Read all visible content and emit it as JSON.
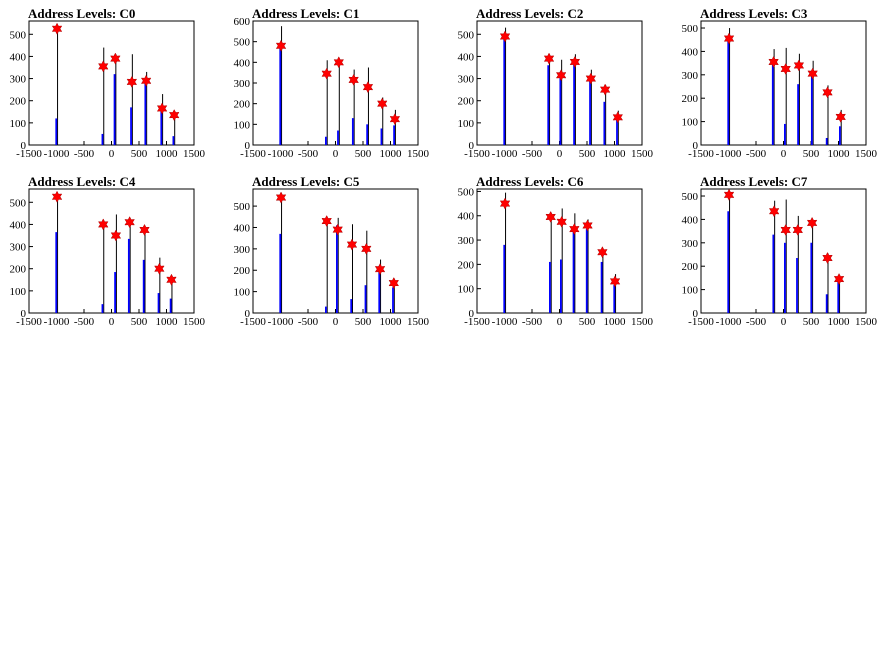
{
  "colors": {
    "background": "#ffffff",
    "frame": "#000000",
    "histogram_black": "#000000",
    "histogram_blue": "#0000ff",
    "marker": "#ff0000"
  },
  "chart_data": [
    {
      "type": "bar",
      "title": "Address Levels: C0",
      "xlim": [
        -1500,
        1500
      ],
      "ylim": [
        0,
        560
      ],
      "xticks": [
        "-1500",
        "-1000",
        "-500",
        "0",
        "500",
        "1000",
        "1500"
      ],
      "yticks": [
        "0",
        "100",
        "200",
        "300",
        "400",
        "500"
      ],
      "ytick_values": [
        0,
        100,
        200,
        300,
        400,
        500
      ],
      "peaks": [
        {
          "x": -990,
          "black": 525,
          "blue": 120,
          "marker": 525
        },
        {
          "x": -150,
          "black": 440,
          "blue": 50,
          "marker": 355
        },
        {
          "x": 70,
          "black": 410,
          "blue": 320,
          "marker": 390
        },
        {
          "x": 370,
          "black": 410,
          "blue": 170,
          "marker": 285
        },
        {
          "x": 630,
          "black": 330,
          "blue": 290,
          "marker": 290
        },
        {
          "x": 920,
          "black": 230,
          "blue": 160,
          "marker": 165
        },
        {
          "x": 1140,
          "black": 130,
          "blue": 40,
          "marker": 135
        }
      ]
    },
    {
      "type": "bar",
      "title": "Address Levels: C1",
      "xlim": [
        -1500,
        1500
      ],
      "ylim": [
        0,
        600
      ],
      "xticks": [
        "-1500",
        "-1000",
        "-500",
        "0",
        "500",
        "1000",
        "1500"
      ],
      "yticks": [
        "0",
        "100",
        "200",
        "300",
        "400",
        "500",
        "600"
      ],
      "ytick_values": [
        0,
        100,
        200,
        300,
        400,
        500,
        600
      ],
      "peaks": [
        {
          "x": -990,
          "black": 575,
          "blue": 475,
          "marker": 480
        },
        {
          "x": -160,
          "black": 410,
          "blue": 40,
          "marker": 345
        },
        {
          "x": 60,
          "black": 410,
          "blue": 70,
          "marker": 400
        },
        {
          "x": 330,
          "black": 365,
          "blue": 130,
          "marker": 315
        },
        {
          "x": 590,
          "black": 375,
          "blue": 100,
          "marker": 280
        },
        {
          "x": 850,
          "black": 230,
          "blue": 80,
          "marker": 200
        },
        {
          "x": 1080,
          "black": 170,
          "blue": 95,
          "marker": 125
        }
      ]
    },
    {
      "type": "bar",
      "title": "Address Levels: C2",
      "xlim": [
        -1500,
        1500
      ],
      "ylim": [
        0,
        560
      ],
      "xticks": [
        "-1500",
        "-1000",
        "-500",
        "0",
        "500",
        "1000",
        "1500"
      ],
      "yticks": [
        "0",
        "100",
        "200",
        "300",
        "400",
        "500"
      ],
      "ytick_values": [
        0,
        100,
        200,
        300,
        400,
        500
      ],
      "peaks": [
        {
          "x": -990,
          "black": 530,
          "blue": 485,
          "marker": 490
        },
        {
          "x": -190,
          "black": 400,
          "blue": 360,
          "marker": 390
        },
        {
          "x": 30,
          "black": 385,
          "blue": 330,
          "marker": 315
        },
        {
          "x": 280,
          "black": 410,
          "blue": 375,
          "marker": 375
        },
        {
          "x": 570,
          "black": 340,
          "blue": 305,
          "marker": 300
        },
        {
          "x": 830,
          "black": 270,
          "blue": 195,
          "marker": 250
        },
        {
          "x": 1060,
          "black": 155,
          "blue": 115,
          "marker": 125
        }
      ]
    },
    {
      "type": "bar",
      "title": "Address Levels: C3",
      "xlim": [
        -1500,
        1500
      ],
      "ylim": [
        0,
        530
      ],
      "xticks": [
        "-1500",
        "-1000",
        "-500",
        "0",
        "500",
        "1000",
        "1500"
      ],
      "yticks": [
        "0",
        "100",
        "200",
        "300",
        "400",
        "500"
      ],
      "ytick_values": [
        0,
        100,
        200,
        300,
        400,
        500
      ],
      "peaks": [
        {
          "x": -990,
          "black": 500,
          "blue": 450,
          "marker": 455
        },
        {
          "x": -180,
          "black": 410,
          "blue": 350,
          "marker": 355
        },
        {
          "x": 40,
          "black": 415,
          "blue": 90,
          "marker": 325
        },
        {
          "x": 280,
          "black": 390,
          "blue": 260,
          "marker": 340
        },
        {
          "x": 530,
          "black": 360,
          "blue": 310,
          "marker": 305
        },
        {
          "x": 800,
          "black": 255,
          "blue": 30,
          "marker": 225
        },
        {
          "x": 1040,
          "black": 150,
          "blue": 80,
          "marker": 120
        }
      ]
    },
    {
      "type": "bar",
      "title": "Address Levels: C4",
      "xlim": [
        -1500,
        1500
      ],
      "ylim": [
        0,
        560
      ],
      "xticks": [
        "-1500",
        "-1000",
        "-500",
        "0",
        "500",
        "1000",
        "1500"
      ],
      "yticks": [
        "0",
        "100",
        "200",
        "300",
        "400",
        "500"
      ],
      "ytick_values": [
        0,
        100,
        200,
        300,
        400,
        500
      ],
      "peaks": [
        {
          "x": -990,
          "black": 530,
          "blue": 365,
          "marker": 525
        },
        {
          "x": -150,
          "black": 405,
          "blue": 40,
          "marker": 400
        },
        {
          "x": 80,
          "black": 445,
          "blue": 185,
          "marker": 350
        },
        {
          "x": 330,
          "black": 420,
          "blue": 335,
          "marker": 410
        },
        {
          "x": 600,
          "black": 385,
          "blue": 240,
          "marker": 375
        },
        {
          "x": 870,
          "black": 250,
          "blue": 90,
          "marker": 200
        },
        {
          "x": 1090,
          "black": 160,
          "blue": 65,
          "marker": 150
        }
      ]
    },
    {
      "type": "bar",
      "title": "Address Levels: C5",
      "xlim": [
        -1500,
        1500
      ],
      "ylim": [
        0,
        580
      ],
      "xticks": [
        "-1500",
        "-1000",
        "-500",
        "0",
        "500",
        "1000",
        "1500"
      ],
      "yticks": [
        "0",
        "100",
        "200",
        "300",
        "400",
        "500"
      ],
      "ytick_values": [
        0,
        100,
        200,
        300,
        400,
        500
      ],
      "peaks": [
        {
          "x": -990,
          "black": 540,
          "blue": 370,
          "marker": 540
        },
        {
          "x": -160,
          "black": 440,
          "blue": 30,
          "marker": 430
        },
        {
          "x": 40,
          "black": 445,
          "blue": 410,
          "marker": 390
        },
        {
          "x": 300,
          "black": 415,
          "blue": 65,
          "marker": 320
        },
        {
          "x": 560,
          "black": 385,
          "blue": 130,
          "marker": 300
        },
        {
          "x": 810,
          "black": 250,
          "blue": 220,
          "marker": 205
        },
        {
          "x": 1060,
          "black": 160,
          "blue": 120,
          "marker": 140
        }
      ]
    },
    {
      "type": "bar",
      "title": "Address Levels: C6",
      "xlim": [
        -1500,
        1500
      ],
      "ylim": [
        0,
        510
      ],
      "xticks": [
        "-1500",
        "-1000",
        "-500",
        "0",
        "500",
        "1000",
        "1500"
      ],
      "yticks": [
        "0",
        "100",
        "200",
        "300",
        "400",
        "500"
      ],
      "ytick_values": [
        0,
        100,
        200,
        300,
        400,
        500
      ],
      "peaks": [
        {
          "x": -990,
          "black": 495,
          "blue": 280,
          "marker": 450
        },
        {
          "x": -160,
          "black": 400,
          "blue": 210,
          "marker": 395
        },
        {
          "x": 40,
          "black": 430,
          "blue": 220,
          "marker": 375
        },
        {
          "x": 270,
          "black": 410,
          "blue": 350,
          "marker": 345
        },
        {
          "x": 510,
          "black": 385,
          "blue": 345,
          "marker": 360
        },
        {
          "x": 780,
          "black": 250,
          "blue": 210,
          "marker": 250
        },
        {
          "x": 1010,
          "black": 160,
          "blue": 115,
          "marker": 130
        }
      ]
    },
    {
      "type": "bar",
      "title": "Address Levels: C7",
      "xlim": [
        -1500,
        1500
      ],
      "ylim": [
        0,
        530
      ],
      "xticks": [
        "-1500",
        "-1000",
        "-500",
        "0",
        "500",
        "1000",
        "1500"
      ],
      "yticks": [
        "0",
        "100",
        "200",
        "300",
        "400",
        "500"
      ],
      "ytick_values": [
        0,
        100,
        200,
        300,
        400,
        500
      ],
      "peaks": [
        {
          "x": -990,
          "black": 520,
          "blue": 435,
          "marker": 505
        },
        {
          "x": -170,
          "black": 480,
          "blue": 335,
          "marker": 435
        },
        {
          "x": 40,
          "black": 485,
          "blue": 300,
          "marker": 355
        },
        {
          "x": 260,
          "black": 415,
          "blue": 235,
          "marker": 355
        },
        {
          "x": 520,
          "black": 400,
          "blue": 300,
          "marker": 385
        },
        {
          "x": 800,
          "black": 255,
          "blue": 80,
          "marker": 235
        },
        {
          "x": 1010,
          "black": 155,
          "blue": 140,
          "marker": 145
        }
      ]
    }
  ]
}
